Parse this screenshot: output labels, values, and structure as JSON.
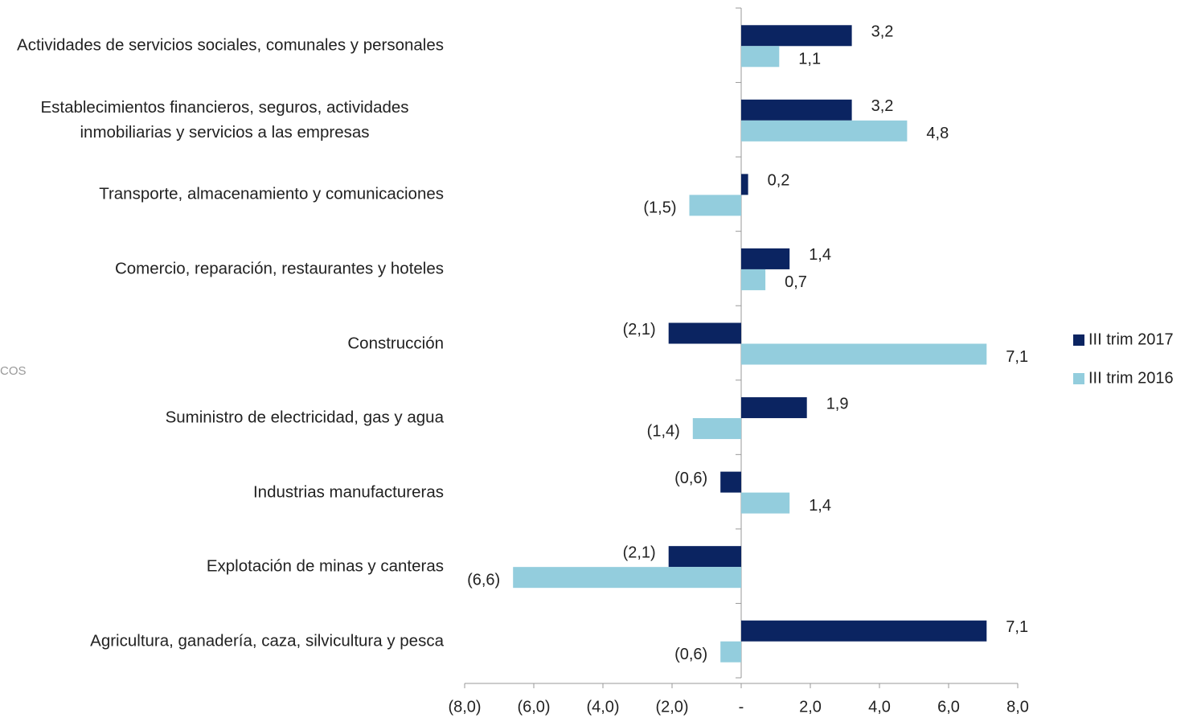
{
  "chart_data": {
    "type": "bar",
    "orientation": "horizontal",
    "watermark": "COS",
    "categories": [
      "Actividades de servicios sociales, comunales y personales",
      "Establecimientos financieros, seguros, actividades inmobiliarias y servicios a las empresas",
      "Transporte, almacenamiento y comunicaciones",
      "Comercio, reparación, restaurantes y hoteles",
      "Construcción",
      "Suministro de electricidad, gas y agua",
      "Industrias manufactureras",
      "Explotación de minas y canteras",
      "Agricultura, ganadería, caza, silvicultura y pesca"
    ],
    "series": [
      {
        "name": "III trim 2017",
        "color": "#0b2461",
        "values": [
          3.2,
          3.2,
          0.2,
          1.4,
          -2.1,
          1.9,
          -0.6,
          -2.1,
          7.1
        ],
        "value_labels": [
          "3,2",
          "3,2",
          "0,2",
          "1,4",
          "(2,1)",
          "1,9",
          "(0,6)",
          "(2,1)",
          "7,1"
        ]
      },
      {
        "name": "III trim 2016",
        "color": "#93cddd",
        "values": [
          1.1,
          4.8,
          -1.5,
          0.7,
          7.1,
          -1.4,
          1.4,
          -6.6,
          -0.6
        ],
        "value_labels": [
          "1,1",
          "4,8",
          "(1,5)",
          "0,7",
          "7,1",
          "(1,4)",
          "1,4",
          "(6,6)",
          "(0,6)"
        ]
      }
    ],
    "xlim": [
      -8,
      8
    ],
    "xticks": [
      {
        "value": -8,
        "label": "(8,0)"
      },
      {
        "value": -6,
        "label": "(6,0)"
      },
      {
        "value": -4,
        "label": "(4,0)"
      },
      {
        "value": -2,
        "label": "(2,0)"
      },
      {
        "value": 0,
        "label": "-"
      },
      {
        "value": 2,
        "label": "2,0"
      },
      {
        "value": 4,
        "label": "4,0"
      },
      {
        "value": 6,
        "label": "6,0"
      },
      {
        "value": 8,
        "label": "8,0"
      }
    ],
    "legend": "right"
  }
}
